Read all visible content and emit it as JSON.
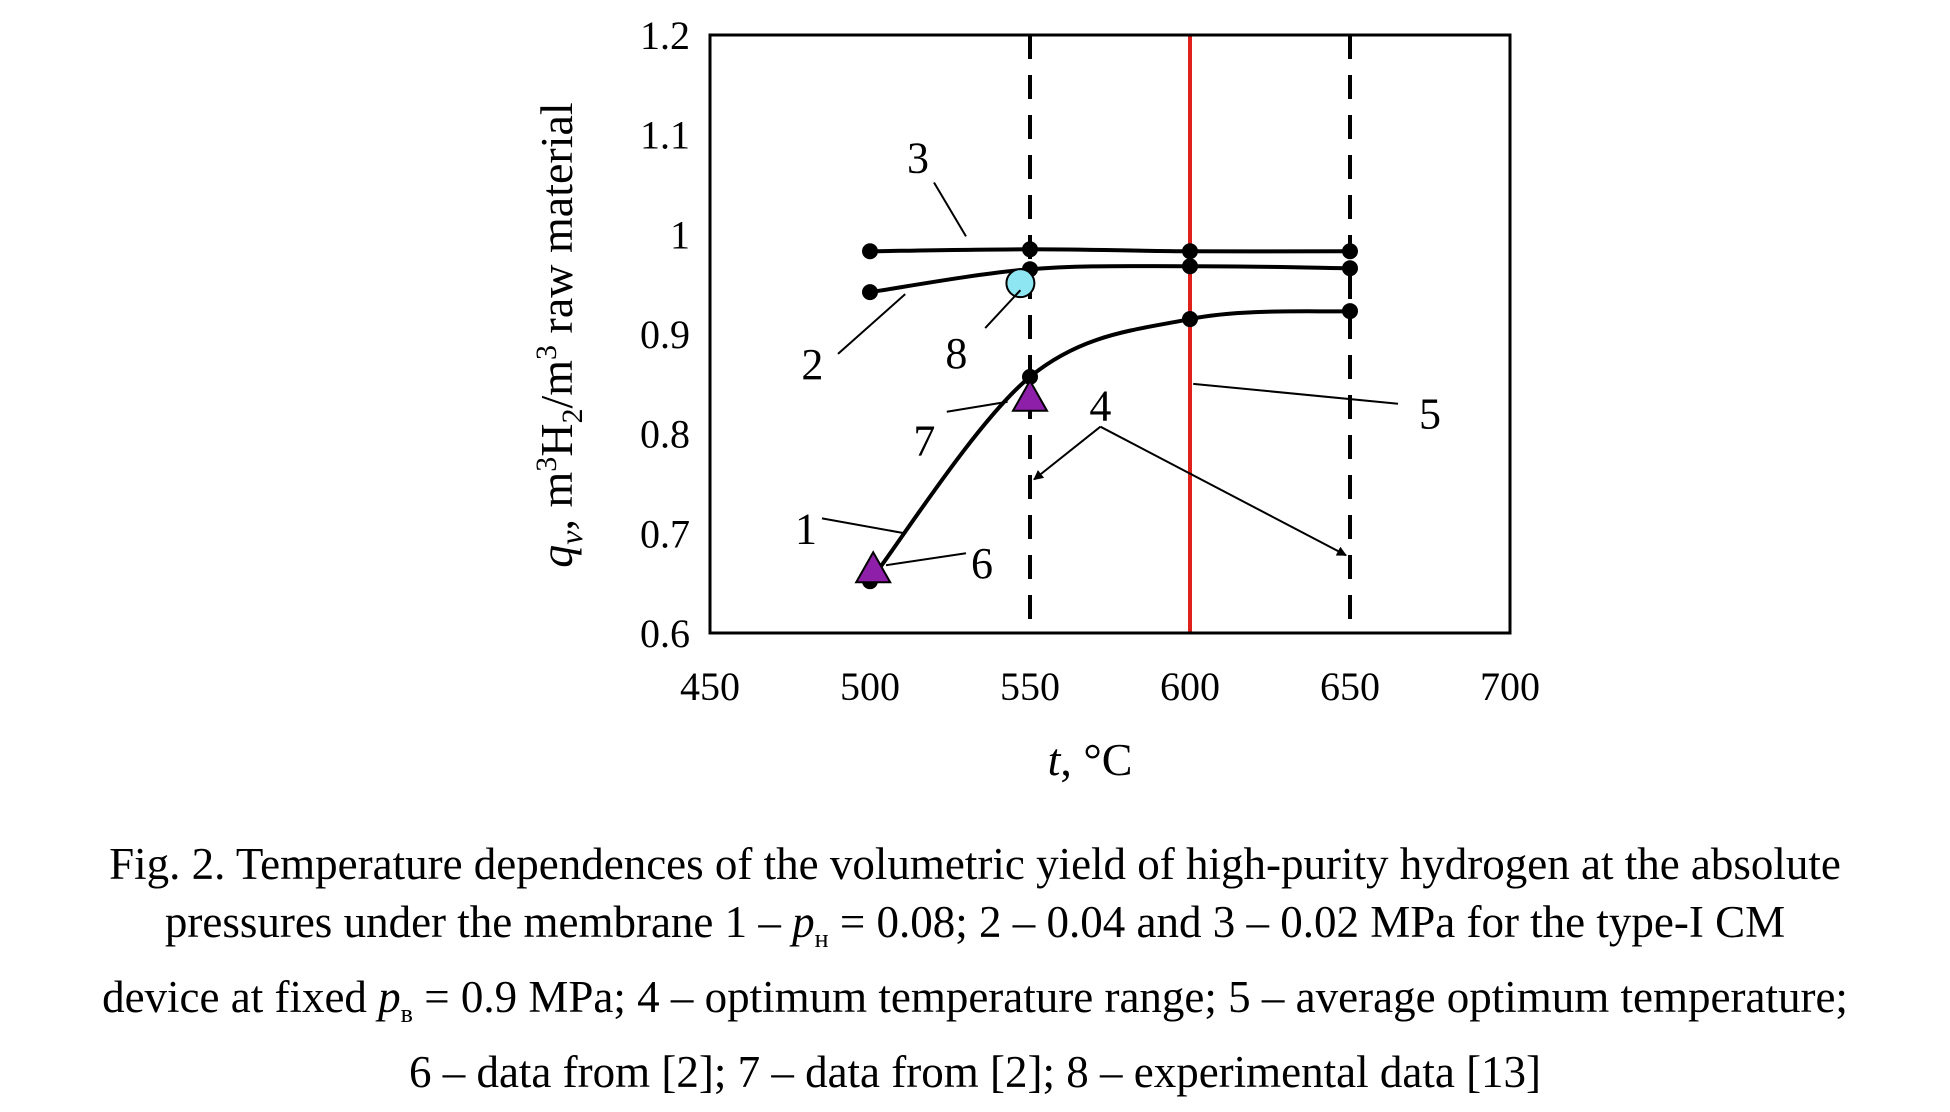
{
  "chart_data": {
    "type": "line",
    "xlabel": "t, °C",
    "ylabel": "qv, m3H2/m3 raw material",
    "xlim": [
      450,
      700
    ],
    "ylim": [
      0.6,
      1.2
    ],
    "x_ticks": [
      "450",
      "500",
      "550",
      "600",
      "650",
      "700"
    ],
    "y_ticks": [
      "0.6",
      "0.7",
      "0.8",
      "0.9",
      "1",
      "1.1",
      "1.2"
    ],
    "grid": false,
    "series": [
      {
        "name": "1",
        "x": [
          500,
          550,
          600,
          650
        ],
        "y": [
          0.652,
          0.857,
          0.915,
          0.923
        ]
      },
      {
        "name": "2",
        "x": [
          500,
          550,
          600,
          650
        ],
        "y": [
          0.942,
          0.965,
          0.968,
          0.966
        ]
      },
      {
        "name": "3",
        "x": [
          500,
          550,
          600,
          650
        ],
        "y": [
          0.983,
          0.985,
          0.983,
          0.983
        ]
      }
    ],
    "markers": [
      {
        "name": "6",
        "shape": "triangle",
        "x": 501,
        "y": 0.666,
        "color": "#8E1FA8"
      },
      {
        "name": "7",
        "shape": "triangle",
        "x": 550,
        "y": 0.838,
        "color": "#8E1FA8"
      },
      {
        "name": "8",
        "shape": "circle",
        "x": 547,
        "y": 0.951,
        "color": "#8EE6F2"
      }
    ],
    "vertical_lines": [
      {
        "x": 550,
        "style": "dashed",
        "color": "#000000"
      },
      {
        "x": 600,
        "style": "solid",
        "color": "#E0201B"
      },
      {
        "x": 650,
        "style": "dashed",
        "color": "#000000"
      }
    ],
    "range_arrow": {
      "label": "4",
      "from": 550,
      "to": 650
    },
    "curve_labels": [
      "1",
      "2",
      "3",
      "4",
      "5",
      "6",
      "7",
      "8"
    ]
  },
  "caption": {
    "line1": "Fig. 2. Temperature dependences of the volumetric yield of high-purity hydrogen at the absolute",
    "line2_a": "pressures under the membrane 1 – ",
    "line2_p": "p",
    "line2_sub": "н",
    "line2_b": " = 0.08; 2 – 0.04 and 3 – 0.02 MPa for the type-I CM",
    "line3_a": "device at fixed ",
    "line3_p": "p",
    "line3_sub": "в",
    "line3_b": " = 0.9 MPa; 4 – optimum temperature range; 5 – average optimum temperature;",
    "line4": "6 – data from [2]; 7 – data from [2]; 8 – experimental data [13]"
  }
}
